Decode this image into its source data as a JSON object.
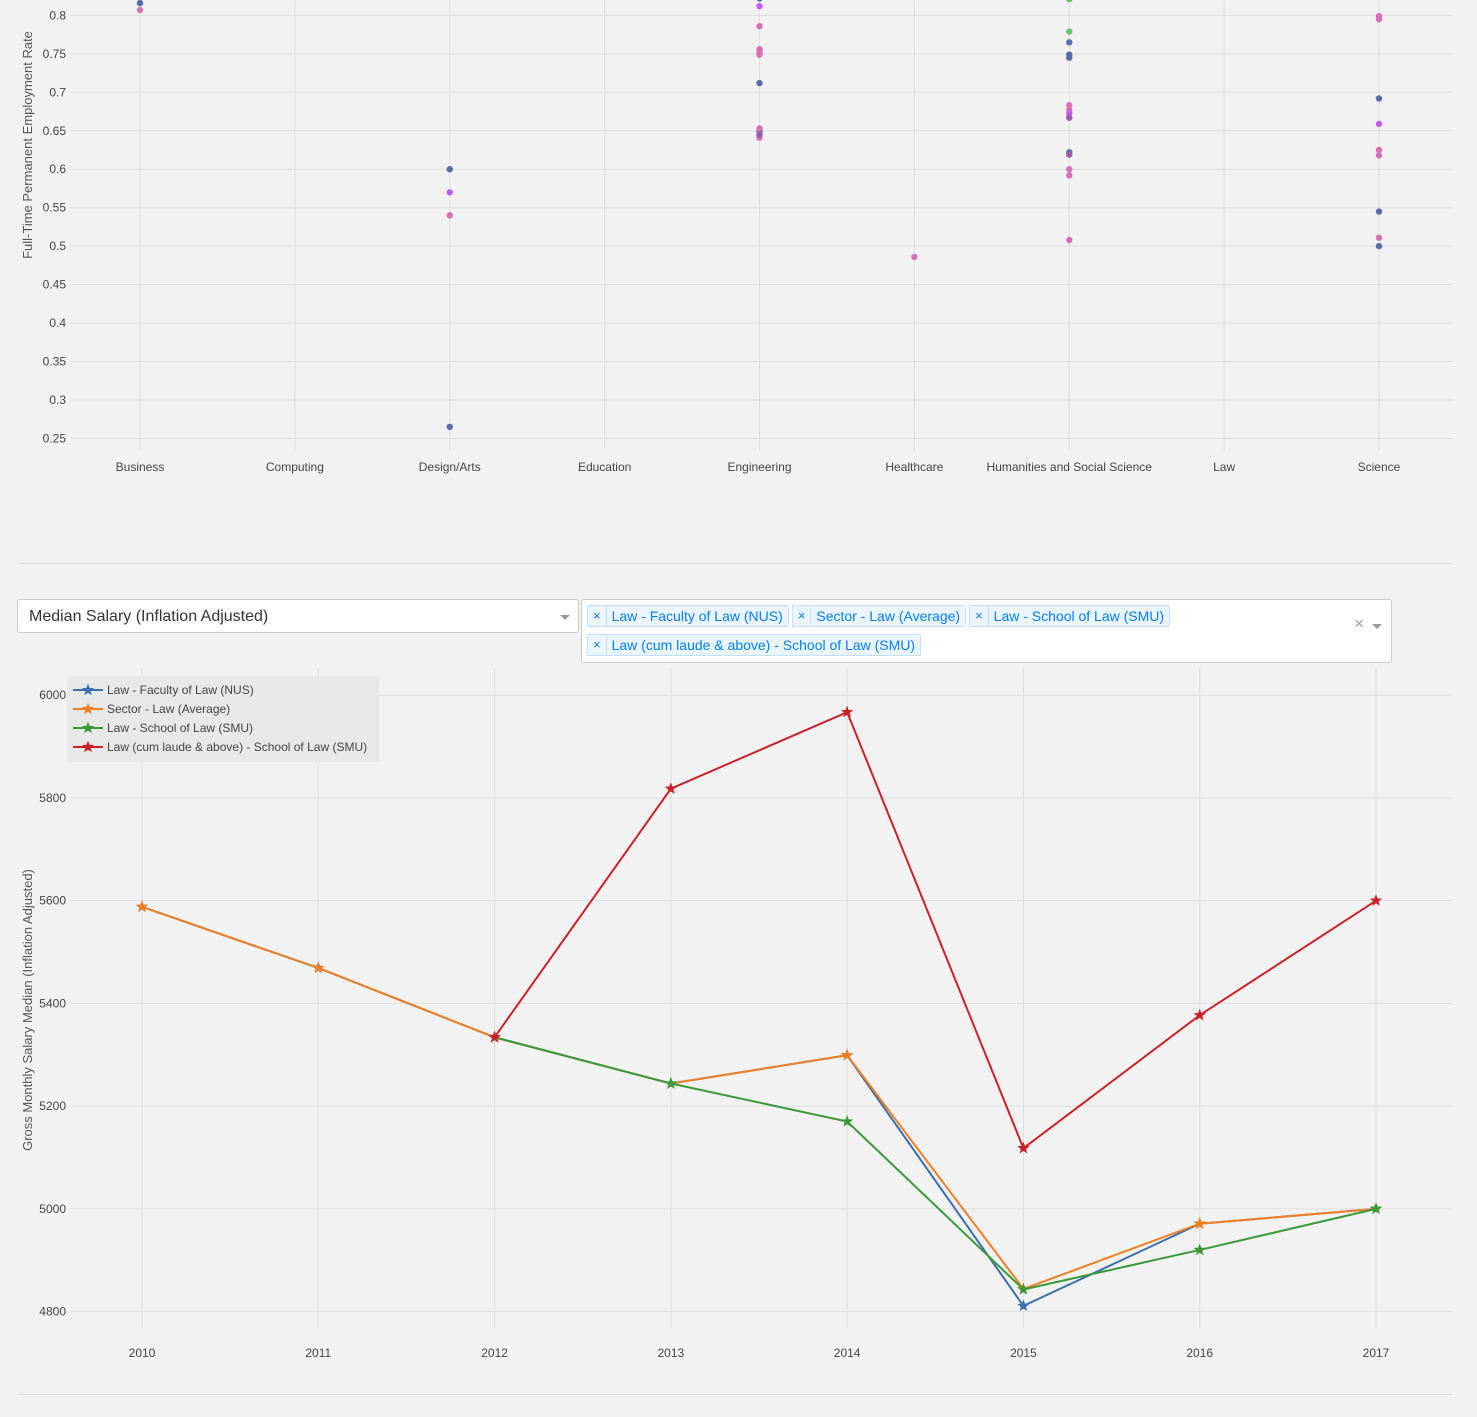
{
  "dropdown": {
    "value": "Median Salary (Inflation Adjusted)",
    "chevron_icon": "chevron-down-icon"
  },
  "multiselect": {
    "tags": [
      "Law - Faculty of Law (NUS)",
      "Sector - Law (Average)",
      "Law - School of Law (SMU)",
      "Law (cum laude & above) - School of Law (SMU)"
    ],
    "remove_icon": "×",
    "clear_icon": "×"
  },
  "chart_data": [
    {
      "type": "scatter",
      "ylabel": "Full-Time Permanent Employment Rate",
      "categories": [
        "Business",
        "Computing",
        "Design/Arts",
        "Education",
        "Engineering",
        "Healthcare",
        "Humanities and Social Science",
        "Law",
        "Science"
      ],
      "yticks": [
        "0.25",
        "0.3",
        "0.35",
        "0.4",
        "0.45",
        "0.5",
        "0.55",
        "0.6",
        "0.65",
        "0.7",
        "0.75",
        "0.8"
      ],
      "ylim": [
        0.235,
        0.82
      ],
      "grid": true,
      "series": [
        {
          "color": "#5b6aa8",
          "points": [
            [
              "Business",
              0.816
            ],
            [
              "Design/Arts",
              0.6
            ],
            [
              "Design/Arts",
              0.265
            ],
            [
              "Engineering",
              0.822
            ],
            [
              "Engineering",
              0.712
            ],
            [
              "Engineering",
              0.649
            ],
            [
              "Humanities and Social Science",
              0.765
            ],
            [
              "Humanities and Social Science",
              0.749
            ],
            [
              "Humanities and Social Science",
              0.745
            ],
            [
              "Humanities and Social Science",
              0.622
            ],
            [
              "Science",
              0.692
            ],
            [
              "Science",
              0.545
            ],
            [
              "Science",
              0.5
            ]
          ]
        },
        {
          "color": "#d96fb5",
          "points": [
            [
              "Business",
              0.807
            ],
            [
              "Design/Arts",
              0.54
            ],
            [
              "Engineering",
              0.786
            ],
            [
              "Engineering",
              0.756
            ],
            [
              "Engineering",
              0.752
            ],
            [
              "Engineering",
              0.749
            ],
            [
              "Engineering",
              0.653
            ],
            [
              "Engineering",
              0.641
            ],
            [
              "Healthcare",
              0.486
            ],
            [
              "Humanities and Social Science",
              0.683
            ],
            [
              "Humanities and Social Science",
              0.677
            ],
            [
              "Humanities and Social Science",
              0.6
            ],
            [
              "Humanities and Social Science",
              0.592
            ],
            [
              "Humanities and Social Science",
              0.508
            ],
            [
              "Science",
              0.799
            ],
            [
              "Science",
              0.795
            ],
            [
              "Science",
              0.625
            ],
            [
              "Science",
              0.618
            ],
            [
              "Science",
              0.511
            ]
          ]
        },
        {
          "color": "#c05ef0",
          "points": [
            [
              "Design/Arts",
              0.57
            ],
            [
              "Engineering",
              0.812
            ],
            [
              "Humanities and Social Science",
              0.673
            ],
            [
              "Science",
              0.659
            ]
          ]
        },
        {
          "color": "#9c5bb0",
          "points": [
            [
              "Engineering",
              0.645
            ],
            [
              "Humanities and Social Science",
              0.667
            ],
            [
              "Humanities and Social Science",
              0.619
            ]
          ]
        },
        {
          "color": "#6cc06c",
          "points": [
            [
              "Humanities and Social Science",
              0.821
            ],
            [
              "Humanities and Social Science",
              0.779
            ]
          ]
        }
      ]
    },
    {
      "type": "line",
      "ylabel": "Gross Monthly Salary Median (Inflation Adjusted)",
      "x": [
        2010,
        2011,
        2012,
        2013,
        2014,
        2015,
        2016,
        2017
      ],
      "xticks": [
        "2010",
        "2011",
        "2012",
        "2013",
        "2014",
        "2015",
        "2016",
        "2017"
      ],
      "yticks": [
        "4800",
        "5000",
        "5200",
        "5400",
        "5600",
        "5800",
        "6000"
      ],
      "ylim": [
        4768,
        6053
      ],
      "grid": true,
      "legend_position": "top-left",
      "marker": "star",
      "series": [
        {
          "name": "Law - Faculty of Law (NUS)",
          "color": "#3a6fb0",
          "values": [
            5588,
            5469,
            5334,
            5244,
            5299,
            4811,
            4971,
            5000
          ]
        },
        {
          "name": "Sector - Law (Average)",
          "color": "#f07f21",
          "values": [
            5588,
            5469,
            5334,
            5244,
            5299,
            4844,
            4971,
            5000
          ]
        },
        {
          "name": "Law - School of Law (SMU)",
          "color": "#3a9a3a",
          "values": [
            null,
            null,
            5334,
            5244,
            5170,
            4843,
            4920,
            5000
          ]
        },
        {
          "name": "Law  (cum laude & above) - School of Law (SMU)",
          "color": "#cc2029",
          "values": [
            null,
            null,
            5334,
            5818,
            5967,
            5118,
            5377,
            5600
          ]
        }
      ]
    }
  ]
}
